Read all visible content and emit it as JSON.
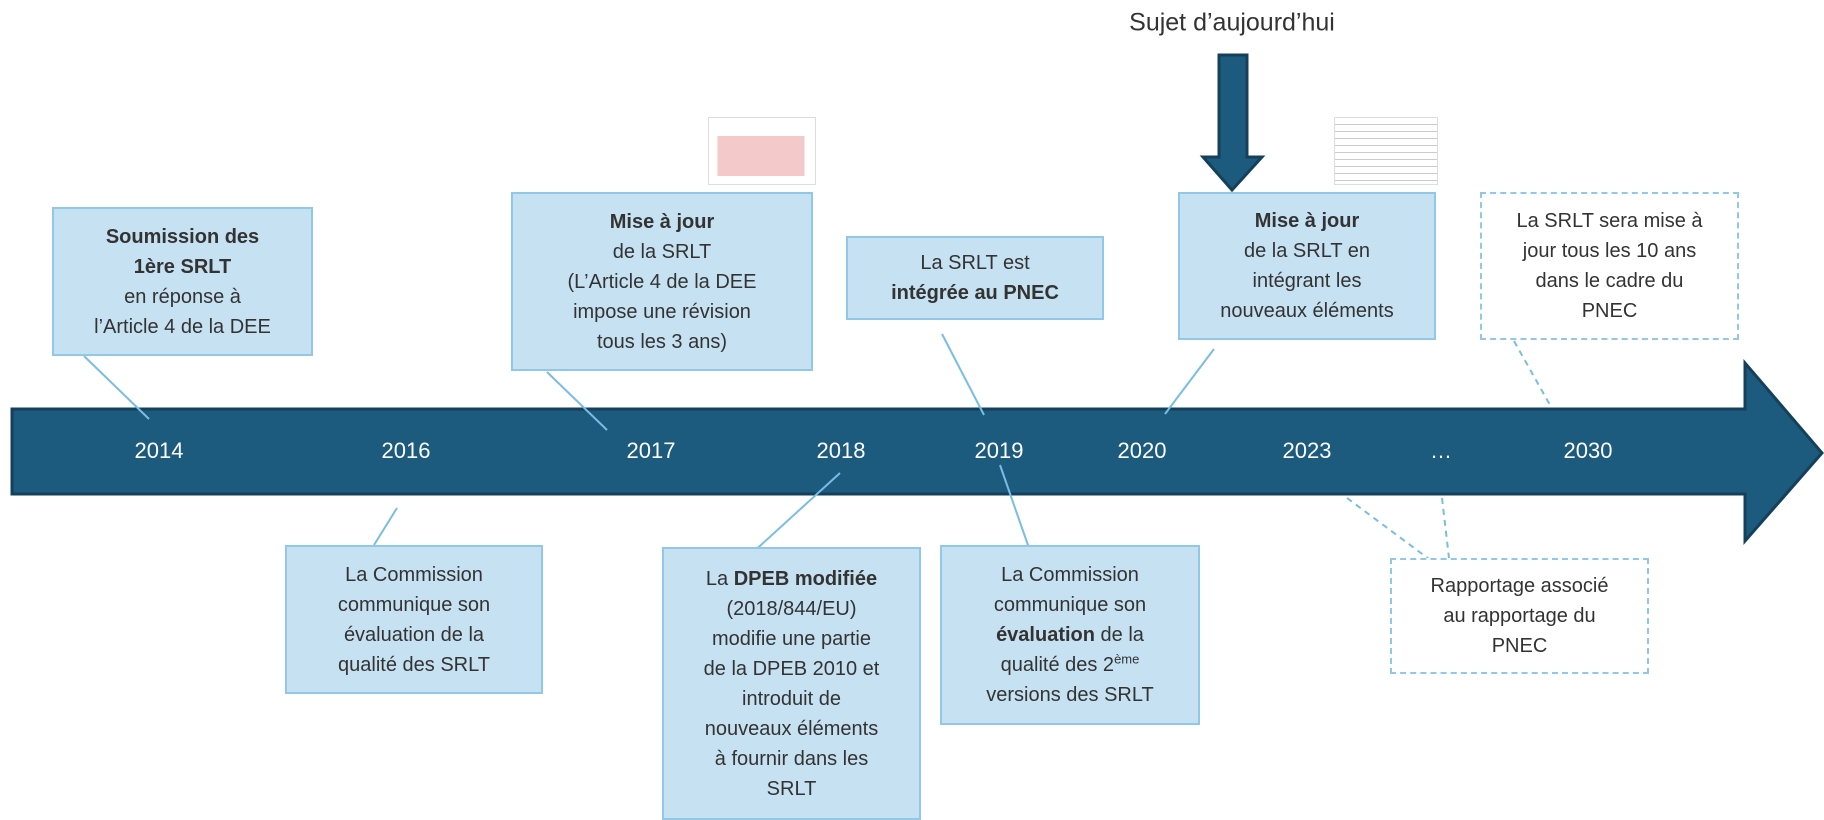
{
  "annotation": "Sujet d’aujourd’hui",
  "years": [
    "2014",
    "2016",
    "2017",
    "2018",
    "2019",
    "2020",
    "2023",
    "…",
    "2030"
  ],
  "events": [
    {
      "lines": [
        [
          {
            "text": "Soumission des",
            "bold": true
          }
        ],
        [
          {
            "text": "1ère SRLT",
            "bold": true
          }
        ],
        [
          {
            "text": "en réponse à"
          }
        ],
        [
          {
            "text": "l’Article 4 de la DEE"
          }
        ]
      ]
    },
    {
      "lines": [
        [
          {
            "text": "La Commission"
          }
        ],
        [
          {
            "text": "communique son"
          }
        ],
        [
          {
            "text": "évaluation de la"
          }
        ],
        [
          {
            "text": "qualité des SRLT"
          }
        ]
      ]
    },
    {
      "lines": [
        [
          {
            "text": "Mise à jour",
            "bold": true
          }
        ],
        [
          {
            "text": "de la SRLT"
          }
        ],
        [
          {
            "text": "(L’Article 4 de la DEE"
          }
        ],
        [
          {
            "text": "impose une révision"
          }
        ],
        [
          {
            "text": "tous les 3 ans)"
          }
        ]
      ]
    },
    {
      "lines": [
        [
          {
            "text": "La "
          },
          {
            "text": "DPEB modifiée",
            "bold": true
          }
        ],
        [
          {
            "text": "(2018/844/EU)"
          }
        ],
        [
          {
            "text": "modifie une partie"
          }
        ],
        [
          {
            "text": "de la DPEB 2010 et"
          }
        ],
        [
          {
            "text": "introduit de"
          }
        ],
        [
          {
            "text": "nouveaux éléments"
          }
        ],
        [
          {
            "text": "à fournir dans les"
          }
        ],
        [
          {
            "text": "SRLT"
          }
        ]
      ]
    },
    {
      "lines": [
        [
          {
            "text": "La SRLT est"
          }
        ],
        [
          {
            "text": "intégrée au PNEC",
            "bold": true
          }
        ]
      ]
    },
    {
      "lines": [
        [
          {
            "text": "La Commission"
          }
        ],
        [
          {
            "text": "communique son"
          }
        ],
        [
          {
            "text": "évaluation",
            "bold": true
          },
          {
            "text": " de la"
          }
        ],
        [
          {
            "text": "qualité des 2"
          },
          {
            "text": "ème",
            "sup": true
          }
        ],
        [
          {
            "text": "versions des SRLT"
          }
        ]
      ]
    },
    {
      "lines": [
        [
          {
            "text": "Mise à jour",
            "bold": true
          }
        ],
        [
          {
            "text": "de la SRLT en"
          }
        ],
        [
          {
            "text": "intégrant les"
          }
        ],
        [
          {
            "text": "nouveaux éléments"
          }
        ]
      ]
    },
    {
      "lines": [
        [
          {
            "text": "La SRLT sera mise à"
          }
        ],
        [
          {
            "text": "jour tous les 10 ans"
          }
        ],
        [
          {
            "text": "dans le cadre du"
          }
        ],
        [
          {
            "text": "PNEC"
          }
        ]
      ]
    },
    {
      "lines": [
        [
          {
            "text": "Rapportage associé"
          }
        ],
        [
          {
            "text": "au rapportage du"
          }
        ],
        [
          {
            "text": "PNEC"
          }
        ]
      ]
    }
  ]
}
